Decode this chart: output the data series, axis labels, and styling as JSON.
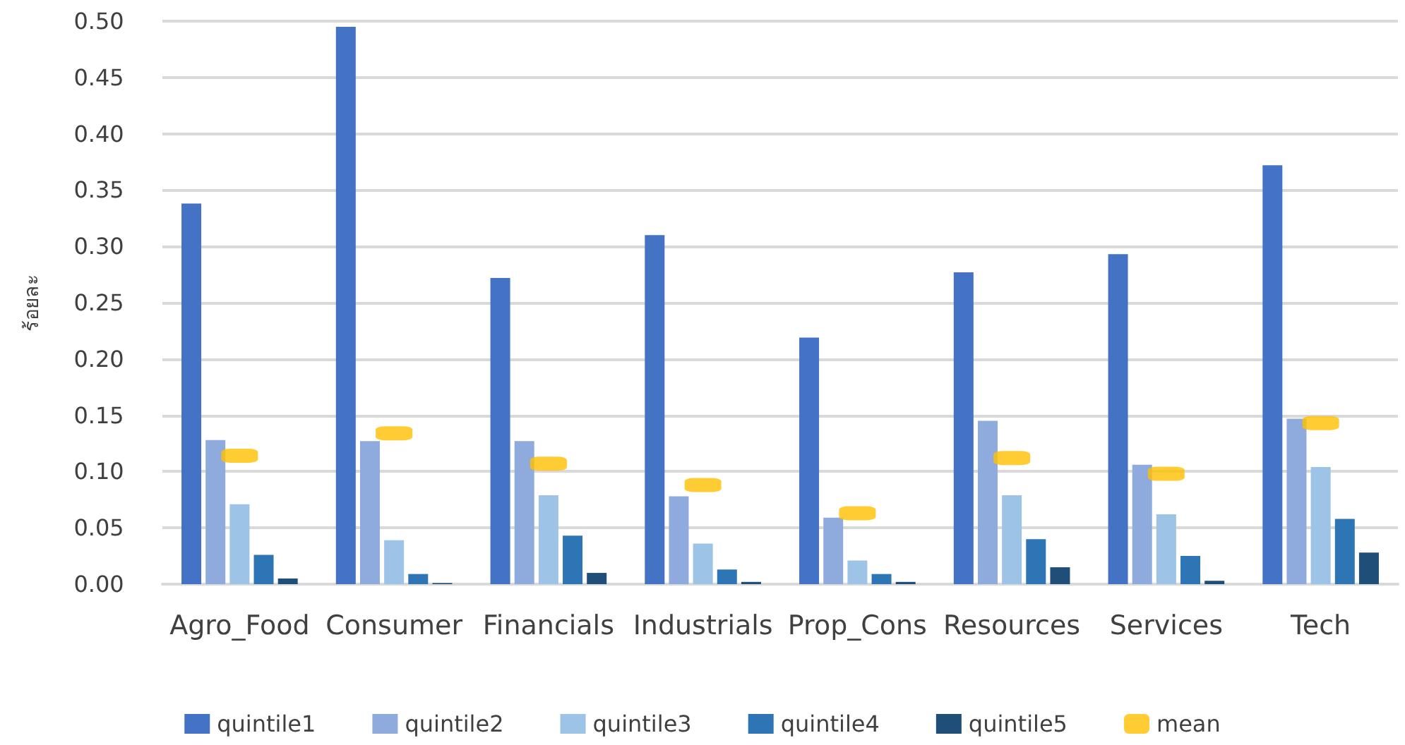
{
  "chart_data": {
    "type": "bar",
    "ylabel": "ร้อยละ",
    "categories": [
      "Agro_Food",
      "Consumer",
      "Financials",
      "Industrials",
      "Prop_Cons",
      "Resources",
      "Services",
      "Tech"
    ],
    "series": [
      {
        "name": "quintile1",
        "color": "#4472c4",
        "values": [
          0.338,
          0.495,
          0.272,
          0.31,
          0.219,
          0.277,
          0.293,
          0.372
        ]
      },
      {
        "name": "quintile2",
        "color": "#8faadc",
        "values": [
          0.128,
          0.127,
          0.127,
          0.078,
          0.059,
          0.145,
          0.106,
          0.147
        ]
      },
      {
        "name": "quintile3",
        "color": "#9dc3e6",
        "values": [
          0.071,
          0.039,
          0.079,
          0.036,
          0.021,
          0.079,
          0.062,
          0.104
        ]
      },
      {
        "name": "quintile4",
        "color": "#2e75b6",
        "values": [
          0.026,
          0.009,
          0.043,
          0.013,
          0.009,
          0.04,
          0.025,
          0.058
        ]
      },
      {
        "name": "quintile5",
        "color": "#1f4e79",
        "values": [
          0.005,
          0.001,
          0.01,
          0.002,
          0.002,
          0.015,
          0.003,
          0.028
        ]
      },
      {
        "name": "mean",
        "type": "scatter",
        "color": "#ffc000",
        "x": [
          "Agro_Food",
          "Consumer",
          "Financials",
          "Industrials",
          "Prop_Cons",
          "Resources",
          "Services",
          "Tech"
        ],
        "values": [
          0.114,
          0.134,
          0.107,
          0.088,
          0.063,
          0.112,
          0.098,
          0.143
        ]
      }
    ],
    "ylim": [
      0,
      0.5
    ],
    "yticks": [
      {
        "value": 0,
        "label": "0.00"
      },
      {
        "value": 0.05,
        "label": "0.05"
      },
      {
        "value": 0.1,
        "label": "0.10"
      },
      {
        "value": 0.15,
        "label": "0.15"
      },
      {
        "value": 0.2,
        "label": "0.20"
      },
      {
        "value": 0.25,
        "label": "0.25"
      },
      {
        "value": 0.3,
        "label": "0.30"
      },
      {
        "value": 0.35,
        "label": "0.35"
      },
      {
        "value": 0.4,
        "label": "0.40"
      },
      {
        "value": 0.45,
        "label": "0.45"
      },
      {
        "value": 0.5,
        "label": "0.50"
      }
    ],
    "grid": "y",
    "legend": "bottom"
  }
}
